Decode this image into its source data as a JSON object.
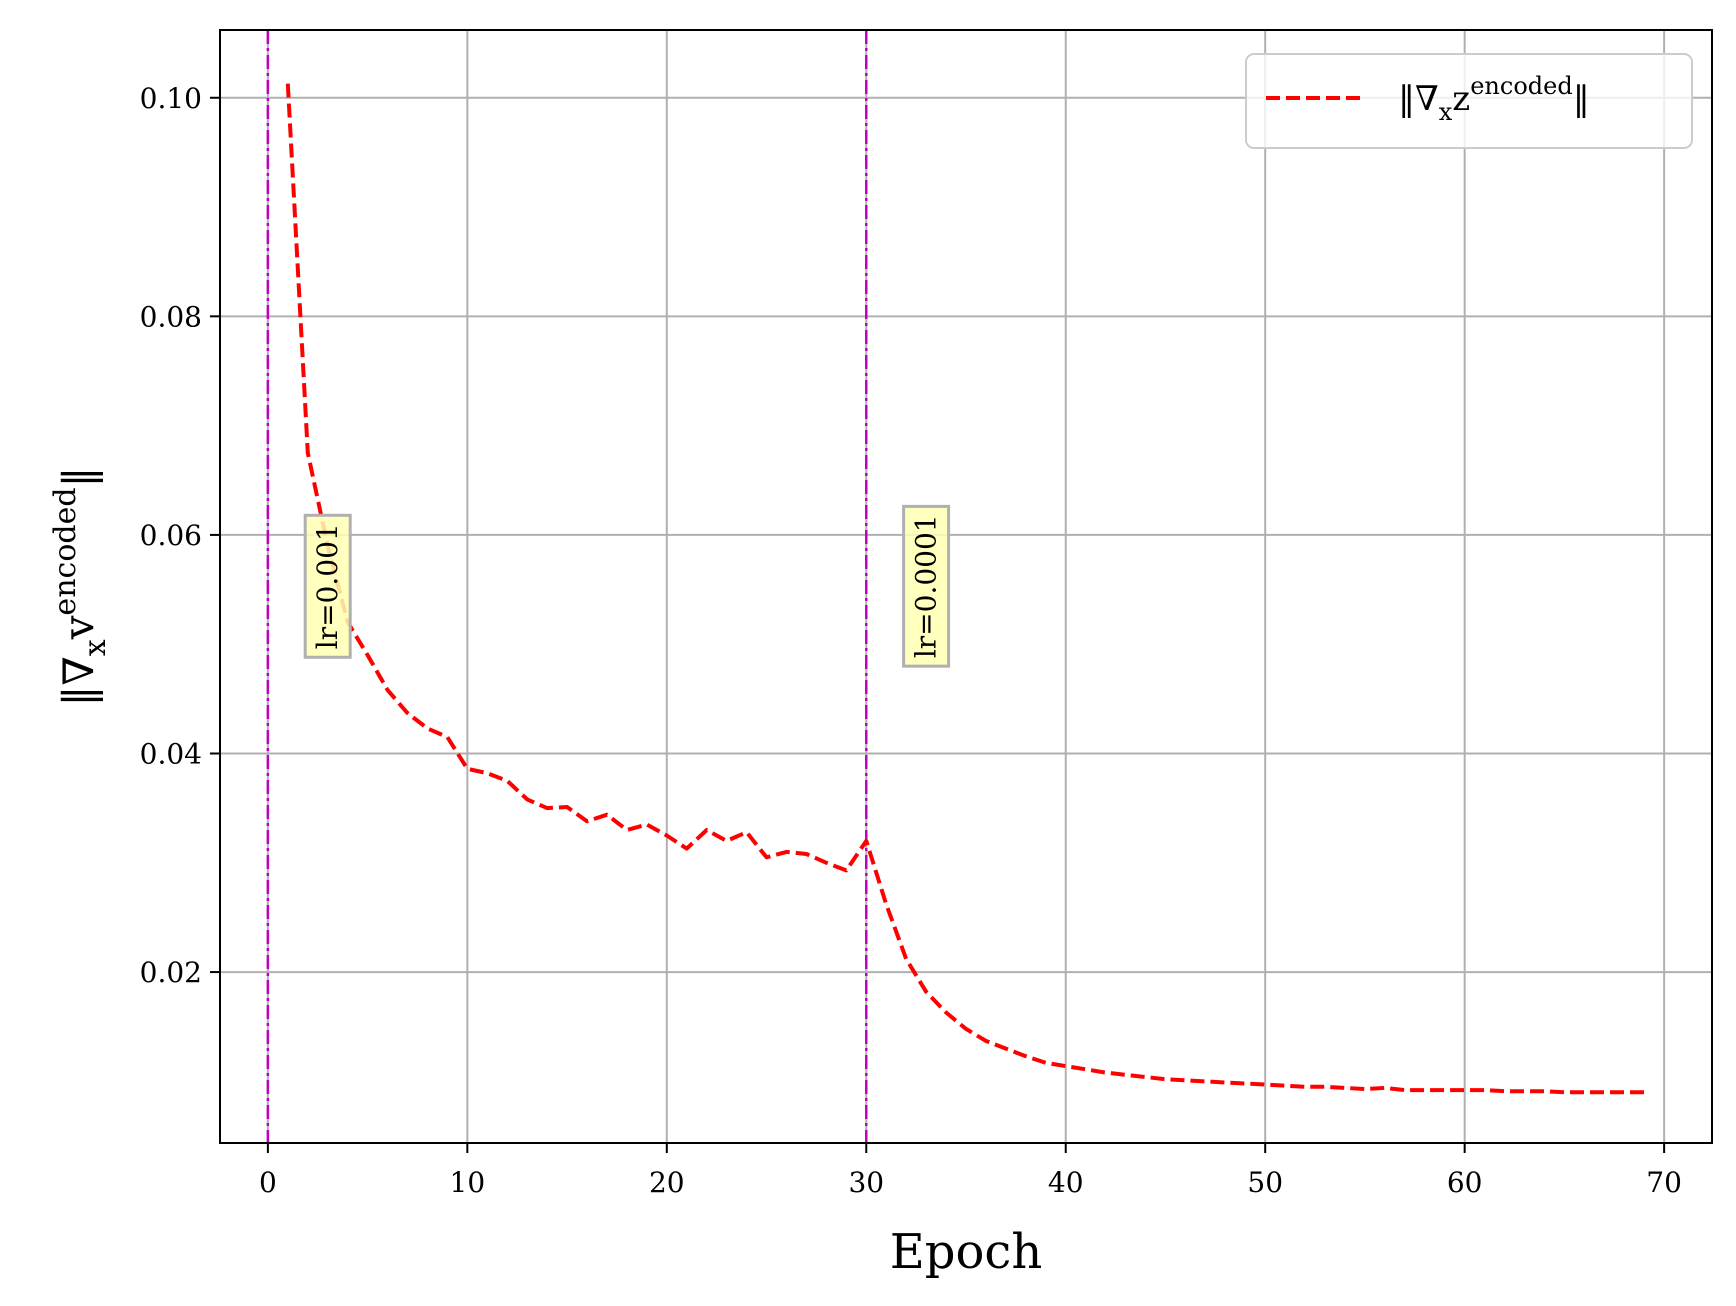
{
  "chart_data": {
    "type": "line",
    "title": "",
    "xlabel": "Epoch",
    "ylabel": "||∇ₓv^encoded||",
    "xlim": [
      -2.4,
      72.4
    ],
    "ylim": [
      0.00436,
      0.1062
    ],
    "xticks": [
      0,
      10,
      20,
      30,
      40,
      50,
      60,
      70
    ],
    "xtick_labels": [
      "0",
      "10",
      "20",
      "30",
      "40",
      "50",
      "60",
      "70"
    ],
    "yticks": [
      0.02,
      0.04,
      0.06,
      0.08,
      0.1
    ],
    "ytick_labels": [
      "0.02",
      "0.04",
      "0.06",
      "0.08",
      "0.10"
    ],
    "grid": true,
    "legend": {
      "placement": "top-right",
      "entries": [
        {
          "label": "||∇ₓz^encoded||",
          "color": "#ff0000",
          "style": "dashed"
        }
      ]
    },
    "series": [
      {
        "name": "||∇ₓz^encoded||",
        "color": "#ff0000",
        "style": "dashed",
        "x": [
          1,
          2,
          3,
          4,
          5,
          6,
          7,
          8,
          9,
          10,
          11,
          12,
          13,
          14,
          15,
          16,
          17,
          18,
          19,
          20,
          21,
          22,
          23,
          24,
          25,
          26,
          27,
          28,
          29,
          30,
          31,
          32,
          33,
          34,
          35,
          36,
          37,
          38,
          39,
          40,
          41,
          42,
          43,
          44,
          45,
          46,
          47,
          48,
          49,
          50,
          51,
          52,
          53,
          54,
          55,
          56,
          57,
          58,
          59,
          60,
          61,
          62,
          63,
          64,
          65,
          66,
          67,
          68,
          69
        ],
        "y": [
          0.1013,
          0.0675,
          0.059,
          0.052,
          0.049,
          0.0458,
          0.0437,
          0.0423,
          0.0415,
          0.0386,
          0.0382,
          0.0375,
          0.0358,
          0.035,
          0.0351,
          0.0338,
          0.0344,
          0.033,
          0.0335,
          0.0325,
          0.0313,
          0.033,
          0.032,
          0.0328,
          0.0305,
          0.031,
          0.0308,
          0.03,
          0.0293,
          0.032,
          0.0262,
          0.0212,
          0.0182,
          0.0163,
          0.0148,
          0.0137,
          0.013,
          0.0123,
          0.0117,
          0.0114,
          0.0111,
          0.0108,
          0.0106,
          0.0104,
          0.0102,
          0.0101,
          0.01,
          0.0099,
          0.0098,
          0.0097,
          0.0096,
          0.0095,
          0.0095,
          0.0094,
          0.0093,
          0.0094,
          0.0092,
          0.0092,
          0.0092,
          0.0092,
          0.0092,
          0.0091,
          0.0091,
          0.0091,
          0.009,
          0.009,
          0.009,
          0.009,
          0.009
        ]
      }
    ],
    "vlines": [
      {
        "x": 0,
        "color": "#bf00bf",
        "style": "dashdot"
      },
      {
        "x": 30,
        "color": "#bf00bf",
        "style": "dashdot"
      }
    ],
    "annotations": [
      {
        "text": "lr=0.001",
        "x": 3,
        "y": 0.0553,
        "rotation": 90,
        "box_color": "#ffffb3"
      },
      {
        "text": "lr=0.0001",
        "x": 33,
        "y": 0.0553,
        "rotation": 90,
        "box_color": "#ffffb3"
      }
    ]
  }
}
